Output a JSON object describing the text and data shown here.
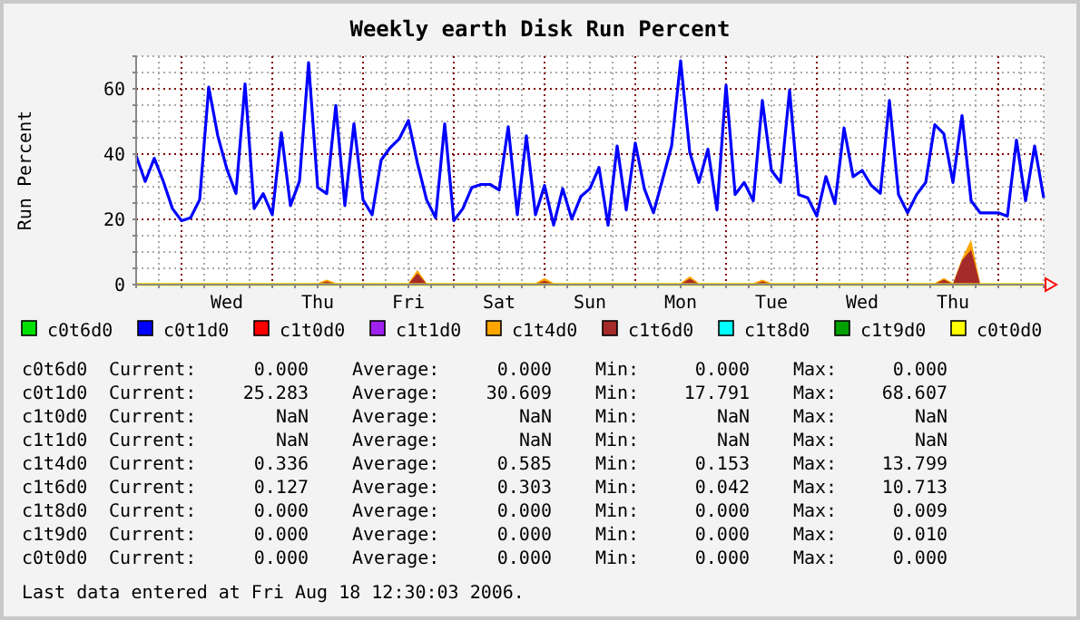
{
  "chart_data": {
    "type": "line",
    "title": "Weekly earth Disk Run Percent",
    "ylabel": "Run Percent",
    "categories": [
      null,
      null,
      null,
      null,
      null,
      null,
      null,
      null,
      null,
      null,
      "Wed",
      null,
      null,
      null,
      null,
      null,
      null,
      null,
      null,
      null,
      "Thu",
      null,
      null,
      null,
      null,
      null,
      null,
      null,
      null,
      null,
      "Fri",
      null,
      null,
      null,
      null,
      null,
      null,
      null,
      null,
      null,
      "Sat",
      null,
      null,
      null,
      null,
      null,
      null,
      null,
      null,
      null,
      "Sun",
      null,
      null,
      null,
      null,
      null,
      null,
      null,
      null,
      null,
      "Mon",
      null,
      null,
      null,
      null,
      null,
      null,
      null,
      null,
      null,
      "Tue",
      null,
      null,
      null,
      null,
      null,
      null,
      null,
      null,
      null,
      "Wed",
      null,
      null,
      null,
      null,
      null,
      null,
      null,
      null,
      null,
      "Thu",
      null,
      null,
      null,
      null,
      null,
      null,
      null,
      null,
      null,
      null
    ],
    "ylim": [
      0,
      70
    ],
    "yticks": [
      0,
      {
        "value": 5,
        "label": null
      },
      {
        "value": 10,
        "label": null
      },
      {
        "value": 15,
        "label": null
      },
      20,
      {
        "value": 25,
        "label": null
      },
      {
        "value": 30,
        "label": null
      },
      {
        "value": 35,
        "label": null
      },
      40,
      {
        "value": 45,
        "label": null
      },
      {
        "value": 50,
        "label": null
      },
      {
        "value": 55,
        "label": null
      },
      60,
      {
        "value": 65,
        "label": null
      },
      {
        "value": 70,
        "label": null
      }
    ],
    "grid": true,
    "legend": "bottom",
    "marker": "none",
    "line_style": "solid",
    "series": [
      {
        "name": "c0t6d0",
        "color": "#00e000",
        "values": [
          null,
          null,
          null,
          null,
          null,
          null,
          null,
          null,
          null,
          null,
          null,
          null,
          null,
          null,
          null,
          null,
          null,
          null,
          null,
          null,
          null,
          null,
          null,
          null,
          null,
          null,
          null,
          null,
          null,
          null,
          null,
          null,
          null,
          null,
          null,
          null,
          null,
          null,
          null,
          null,
          null,
          null,
          null,
          null,
          null,
          null,
          null,
          null,
          null,
          null,
          null,
          null,
          null,
          null,
          null,
          null,
          null,
          null,
          null,
          null,
          null,
          null,
          null,
          null,
          null,
          null,
          null,
          null,
          null,
          null,
          null,
          null,
          null,
          null,
          null,
          null,
          null,
          null,
          null,
          null,
          null,
          null,
          null,
          null,
          null,
          null,
          null,
          null,
          null,
          null,
          null,
          null,
          null,
          null,
          null,
          null,
          null,
          null,
          null,
          null,
          null
        ]
      },
      {
        "name": "c0t1d0",
        "color": "#0000ff",
        "values": [
          39.5,
          31.6,
          38.7,
          31.6,
          23.3,
          19.6,
          20.5,
          26,
          60.5,
          45.6,
          35.4,
          27.9,
          61.5,
          23.3,
          27.9,
          21.4,
          46.6,
          24.2,
          31.7,
          68,
          29.8,
          27.9,
          54.9,
          24.2,
          49.3,
          26,
          21.4,
          38.2,
          42,
          44.7,
          50.3,
          37.2,
          26,
          20.5,
          49.3,
          19.6,
          23.3,
          29.8,
          30.7,
          30.7,
          29,
          48.4,
          21.4,
          45.6,
          21.4,
          30.4,
          18.2,
          29.4,
          20.1,
          27,
          29.4,
          35.9,
          18.2,
          42.5,
          22.9,
          43.4,
          29.4,
          22,
          32.2,
          42.5,
          68.6,
          40.6,
          31.3,
          41.5,
          22.9,
          61.1,
          27.6,
          31.3,
          25.7,
          56.4,
          35,
          31.3,
          59.6,
          27.6,
          26.6,
          21,
          33.1,
          24.8,
          48,
          33.1,
          35,
          30.4,
          28,
          56.4,
          27.6,
          22,
          27.6,
          31.3,
          49,
          46.2,
          31.3,
          51.8,
          25.7,
          22,
          22,
          22,
          21,
          44.3,
          25.7,
          42.5,
          26.6
        ]
      },
      {
        "name": "c1t0d0",
        "color": "#ff0000",
        "values": [
          null,
          null,
          null,
          null,
          null,
          null,
          null,
          null,
          null,
          null,
          null,
          null,
          null,
          null,
          null,
          null,
          null,
          null,
          null,
          null,
          null,
          null,
          null,
          null,
          null,
          null,
          null,
          null,
          null,
          null,
          null,
          null,
          null,
          null,
          null,
          null,
          null,
          null,
          null,
          null,
          null,
          null,
          null,
          null,
          null,
          null,
          null,
          null,
          null,
          null,
          null,
          null,
          null,
          null,
          null,
          null,
          null,
          null,
          null,
          null,
          null,
          null,
          null,
          null,
          null,
          null,
          null,
          null,
          null,
          null,
          null,
          null,
          null,
          null,
          null,
          null,
          null,
          null,
          null,
          null,
          null,
          null,
          null,
          null,
          null,
          null,
          null,
          null,
          null,
          null,
          null,
          null,
          null,
          null,
          null,
          null,
          null,
          null,
          null,
          null,
          null
        ]
      },
      {
        "name": "c1t1d0",
        "color": "#a020f0",
        "values": [
          null,
          null,
          null,
          null,
          null,
          null,
          null,
          null,
          null,
          null,
          null,
          null,
          null,
          null,
          null,
          null,
          null,
          null,
          null,
          null,
          null,
          null,
          null,
          null,
          null,
          null,
          null,
          null,
          null,
          null,
          null,
          null,
          null,
          null,
          null,
          null,
          null,
          null,
          null,
          null,
          null,
          null,
          null,
          null,
          null,
          null,
          null,
          null,
          null,
          null,
          null,
          null,
          null,
          null,
          null,
          null,
          null,
          null,
          null,
          null,
          null,
          null,
          null,
          null,
          null,
          null,
          null,
          null,
          null,
          null,
          null,
          null,
          null,
          null,
          null,
          null,
          null,
          null,
          null,
          null,
          null,
          null,
          null,
          null,
          null,
          null,
          null,
          null,
          null,
          null,
          null,
          null,
          null,
          null,
          null,
          null,
          null,
          null,
          null,
          null,
          null
        ]
      },
      {
        "name": "c1t4d0",
        "type": "area",
        "color": "#ffa500",
        "values": [
          0.5,
          0.5,
          0.5,
          0.5,
          0.5,
          0.5,
          0.5,
          0.5,
          0.5,
          0.5,
          0.5,
          0.5,
          0.5,
          0.5,
          0.5,
          0.5,
          0.5,
          0.5,
          0.5,
          0.5,
          0.5,
          1.5,
          0.5,
          0.5,
          0.5,
          0.5,
          0.5,
          0.5,
          0.5,
          0.5,
          0.5,
          4.5,
          0.5,
          0.5,
          0.5,
          0.5,
          0.5,
          0.5,
          0.5,
          0.5,
          0.5,
          0.5,
          0.5,
          0.5,
          0.5,
          2.0,
          0.5,
          0.5,
          0.5,
          0.5,
          0.5,
          0.5,
          0.5,
          0.5,
          0.5,
          0.5,
          0.5,
          0.5,
          0.5,
          0.5,
          0.5,
          2.6,
          0.5,
          0.5,
          0.5,
          0.5,
          0.5,
          0.5,
          0.5,
          1.5,
          0.5,
          0.5,
          0.5,
          0.5,
          0.5,
          0.5,
          0.5,
          0.5,
          0.5,
          0.5,
          0.5,
          0.5,
          0.5,
          0.5,
          0.5,
          0.5,
          0.5,
          0.5,
          0.5,
          2.0,
          0.5,
          8.0,
          13.8,
          0.4,
          0.4,
          0.4,
          0.4,
          0.4,
          0.4,
          0.4,
          0.4
        ]
      },
      {
        "name": "c1t6d0",
        "type": "area",
        "color": "#a52a2a",
        "values": [
          0.2,
          0.2,
          0.2,
          0.2,
          0.2,
          0.2,
          0.2,
          0.2,
          0.2,
          0.2,
          0.2,
          0.2,
          0.2,
          0.2,
          0.2,
          0.2,
          0.2,
          0.2,
          0.2,
          0.2,
          0.2,
          1.0,
          0.2,
          0.2,
          0.2,
          0.2,
          0.2,
          0.2,
          0.2,
          0.2,
          0.2,
          3.5,
          0.2,
          0.2,
          0.2,
          0.2,
          0.2,
          0.2,
          0.2,
          0.2,
          0.2,
          0.2,
          0.2,
          0.2,
          0.2,
          1.2,
          0.2,
          0.2,
          0.2,
          0.2,
          0.2,
          0.2,
          0.2,
          0.2,
          0.2,
          0.2,
          0.2,
          0.2,
          0.2,
          0.2,
          0.2,
          1.8,
          0.2,
          0.2,
          0.2,
          0.2,
          0.2,
          0.2,
          0.2,
          1.0,
          0.2,
          0.2,
          0.2,
          0.2,
          0.2,
          0.2,
          0.2,
          0.2,
          0.2,
          0.2,
          0.2,
          0.2,
          0.2,
          0.2,
          0.2,
          0.2,
          0.2,
          0.2,
          0.2,
          1.5,
          0.2,
          7.4,
          10.7,
          0.1,
          0.1,
          0.1,
          0.1,
          0.1,
          0.1,
          0.1,
          0.1
        ]
      },
      {
        "name": "c1t8d0",
        "color": "#00ffff",
        "values": [
          null,
          null,
          null,
          null,
          null,
          null,
          null,
          null,
          null,
          null,
          null,
          null,
          null,
          null,
          null,
          null,
          null,
          null,
          null,
          null,
          null,
          null,
          null,
          null,
          null,
          null,
          null,
          null,
          null,
          null,
          null,
          null,
          null,
          null,
          null,
          null,
          null,
          null,
          null,
          null,
          null,
          null,
          null,
          null,
          null,
          null,
          null,
          null,
          null,
          null,
          null,
          null,
          null,
          null,
          null,
          null,
          null,
          null,
          null,
          null,
          null,
          null,
          null,
          null,
          null,
          null,
          null,
          null,
          null,
          null,
          null,
          null,
          null,
          null,
          null,
          null,
          null,
          null,
          null,
          null,
          null,
          null,
          null,
          null,
          null,
          null,
          null,
          null,
          null,
          null,
          null,
          null,
          null,
          null,
          null,
          null,
          null,
          null,
          null,
          null,
          null
        ]
      },
      {
        "name": "c1t9d0",
        "color": "#00a000",
        "values": [
          null,
          null,
          null,
          null,
          null,
          null,
          null,
          null,
          null,
          null,
          null,
          null,
          null,
          null,
          null,
          null,
          null,
          null,
          null,
          null,
          null,
          null,
          null,
          null,
          null,
          null,
          null,
          null,
          null,
          null,
          null,
          null,
          null,
          null,
          null,
          null,
          null,
          null,
          null,
          null,
          null,
          null,
          null,
          null,
          null,
          null,
          null,
          null,
          null,
          null,
          null,
          null,
          null,
          null,
          null,
          null,
          null,
          null,
          null,
          null,
          null,
          null,
          null,
          null,
          null,
          null,
          null,
          null,
          null,
          null,
          null,
          null,
          null,
          null,
          null,
          null,
          null,
          null,
          null,
          null,
          null,
          null,
          null,
          null,
          null,
          null,
          null,
          null,
          null,
          null,
          null,
          null,
          null,
          null,
          null,
          null,
          null,
          null,
          null,
          null,
          null
        ]
      },
      {
        "name": "c0t0d0",
        "color": "#ffff00",
        "values": [
          0,
          0,
          0,
          0,
          0,
          0,
          0,
          0,
          0,
          0,
          0,
          0,
          0,
          0,
          0,
          0,
          0,
          0,
          0,
          0,
          0,
          0,
          0,
          0,
          0,
          0,
          0,
          0,
          0,
          0,
          0,
          0,
          0,
          0,
          0,
          0,
          0,
          0,
          0,
          0,
          0,
          0,
          0,
          0,
          0,
          0,
          0,
          0,
          0,
          0,
          0,
          0,
          0,
          0,
          0,
          0,
          0,
          0,
          0,
          0,
          0,
          0,
          0,
          0,
          0,
          0,
          0,
          0,
          0,
          0,
          0,
          0,
          0,
          0,
          0,
          0,
          0,
          0,
          0,
          0,
          0,
          0,
          0,
          0,
          0,
          0,
          0,
          0,
          0,
          0,
          0,
          0,
          0,
          0,
          0,
          0,
          0,
          0,
          0,
          0,
          0
        ]
      }
    ],
    "annotations": [
      "c0t6d0 Current: 0.000 Average: 0.000 Min: 0.000 Max: 0.000",
      "c0t1d0 Current: 25.283 Average: 30.609 Min: 17.791 Max: 68.607",
      "c1t0d0 Current: NaN Average: NaN Min: NaN Max: NaN",
      "c1t1d0 Current: NaN Average: NaN Min: NaN Max: NaN",
      "c1t4d0 Current: 0.336 Average: 0.585 Min: 0.153 Max: 13.799",
      "c1t6d0 Current: 0.127 Average: 0.303 Min: 0.042 Max: 10.713",
      "c1t8d0 Current: 0.000 Average: 0.000 Min: 0.000 Max: 0.009",
      "c1t9d0 Current: 0.000 Average: 0.000 Min: 0.000 Max: 0.010",
      "c0t0d0 Current: 0.000 Average: 0.000 Min: 0.000 Max: 0.000",
      "Last data entered at Fri Aug 18 12:30:03 2006."
    ]
  }
}
